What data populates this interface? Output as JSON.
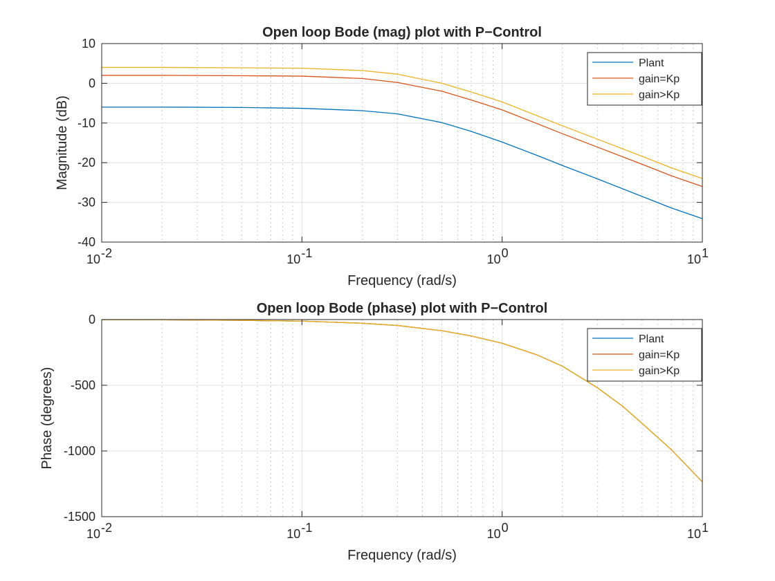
{
  "chart_data": [
    {
      "type": "line",
      "title": "Open loop Bode (mag) plot with P−Control",
      "xlabel": "Frequency (rad/s)",
      "ylabel": "Magnitude (dB)",
      "xscale": "log",
      "xlim": [
        0.01,
        10
      ],
      "ylim": [
        -40,
        10
      ],
      "yticks": [
        10,
        0,
        -10,
        -20,
        -30,
        -40
      ],
      "xticks": [
        {
          "value": 0.01,
          "base": "10",
          "exp": "-2"
        },
        {
          "value": 0.1,
          "base": "10",
          "exp": "-1"
        },
        {
          "value": 1,
          "base": "10",
          "exp": "0"
        },
        {
          "value": 10,
          "base": "10",
          "exp": "1"
        }
      ],
      "grid": true,
      "legend_position": "top-right",
      "x": [
        0.01,
        0.02,
        0.05,
        0.1,
        0.2,
        0.3,
        0.5,
        0.7,
        1,
        1.5,
        2,
        3,
        5,
        7,
        10
      ],
      "series": [
        {
          "name": "Plant",
          "color": "#0072BD",
          "values": [
            -6.0,
            -6.0,
            -6.1,
            -6.3,
            -6.9,
            -7.7,
            -9.9,
            -12.1,
            -14.8,
            -18.2,
            -20.7,
            -24.1,
            -28.5,
            -31.4,
            -34.1
          ]
        },
        {
          "name": "gain=Kp",
          "color": "#D95319",
          "values": [
            2.0,
            2.0,
            1.9,
            1.8,
            1.2,
            0.2,
            -2.0,
            -4.2,
            -6.7,
            -10.2,
            -12.7,
            -16.1,
            -20.4,
            -23.3,
            -26.0
          ]
        },
        {
          "name": "gain>Kp",
          "color": "#EDB120",
          "values": [
            4.0,
            4.0,
            3.9,
            3.8,
            3.2,
            2.3,
            0.0,
            -2.2,
            -4.7,
            -8.2,
            -10.7,
            -14.1,
            -18.4,
            -21.3,
            -24.0
          ]
        }
      ]
    },
    {
      "type": "line",
      "title": "Open loop Bode (phase) plot with P−Control",
      "xlabel": "Frequency (rad/s)",
      "ylabel": "Phase (degrees)",
      "xscale": "log",
      "xlim": [
        0.01,
        10
      ],
      "ylim": [
        -1500,
        0
      ],
      "yticks": [
        0,
        -500,
        -1000,
        -1500
      ],
      "xticks": [
        {
          "value": 0.01,
          "base": "10",
          "exp": "-2"
        },
        {
          "value": 0.1,
          "base": "10",
          "exp": "-1"
        },
        {
          "value": 1,
          "base": "10",
          "exp": "0"
        },
        {
          "value": 10,
          "base": "10",
          "exp": "1"
        }
      ],
      "grid": true,
      "legend_position": "top-right",
      "x": [
        0.01,
        0.02,
        0.05,
        0.1,
        0.2,
        0.3,
        0.5,
        0.7,
        1,
        1.5,
        2,
        3,
        4,
        5,
        7,
        10
      ],
      "series": [
        {
          "name": "Plant",
          "color": "#0072BD",
          "values": [
            -1,
            -2,
            -6,
            -12,
            -28,
            -45,
            -85,
            -125,
            -180,
            -270,
            -355,
            -520,
            -660,
            -790,
            -990,
            -1235
          ]
        },
        {
          "name": "gain=Kp",
          "color": "#D95319",
          "values": [
            -1,
            -2,
            -6,
            -12,
            -28,
            -45,
            -85,
            -125,
            -180,
            -270,
            -355,
            -520,
            -660,
            -790,
            -990,
            -1235
          ]
        },
        {
          "name": "gain>Kp",
          "color": "#EDB120",
          "values": [
            -1,
            -2,
            -6,
            -12,
            -28,
            -45,
            -85,
            -125,
            -180,
            -270,
            -355,
            -520,
            -660,
            -790,
            -990,
            -1235
          ]
        }
      ]
    }
  ]
}
